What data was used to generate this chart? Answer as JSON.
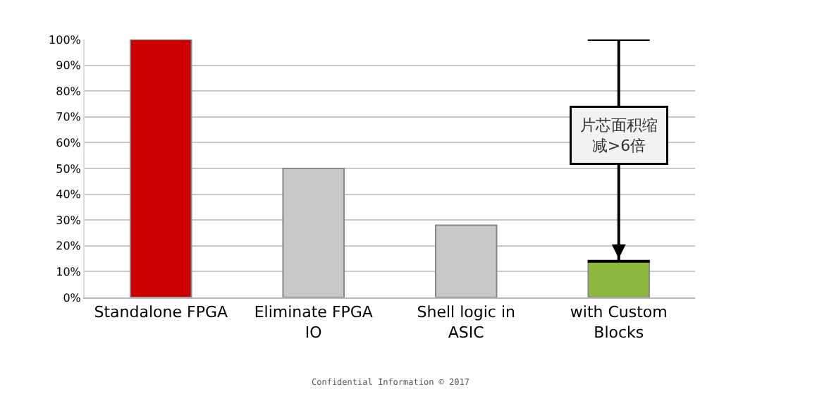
{
  "chart_data": {
    "type": "bar",
    "categories": [
      "Standalone FPGA",
      "Eliminate FPGA IO",
      "Shell logic in ASIC",
      "with Custom Blocks"
    ],
    "values": [
      100,
      50,
      28,
      14
    ],
    "colors": [
      "#cc0000",
      "#c8c8c8",
      "#c8c8c8",
      "#8db83e"
    ],
    "ylim": [
      0,
      100
    ],
    "yticks": [
      {
        "value": 0,
        "label": "0%"
      },
      {
        "value": 10,
        "label": "10%"
      },
      {
        "value": 20,
        "label": "20%"
      },
      {
        "value": 30,
        "label": "30%"
      },
      {
        "value": 40,
        "label": "40%"
      },
      {
        "value": 50,
        "label": "50%"
      },
      {
        "value": 60,
        "label": "60%"
      },
      {
        "value": 70,
        "label": "70%"
      },
      {
        "value": 80,
        "label": "80%"
      },
      {
        "value": 90,
        "label": "90%"
      },
      {
        "value": 100,
        "label": "100%"
      }
    ],
    "grid": "y",
    "errors": [
      null,
      null,
      null,
      [
        14,
        100
      ]
    ],
    "annotations": [
      "片芯面积缩减>6倍",
      "Confidential Information © 2017"
    ]
  }
}
